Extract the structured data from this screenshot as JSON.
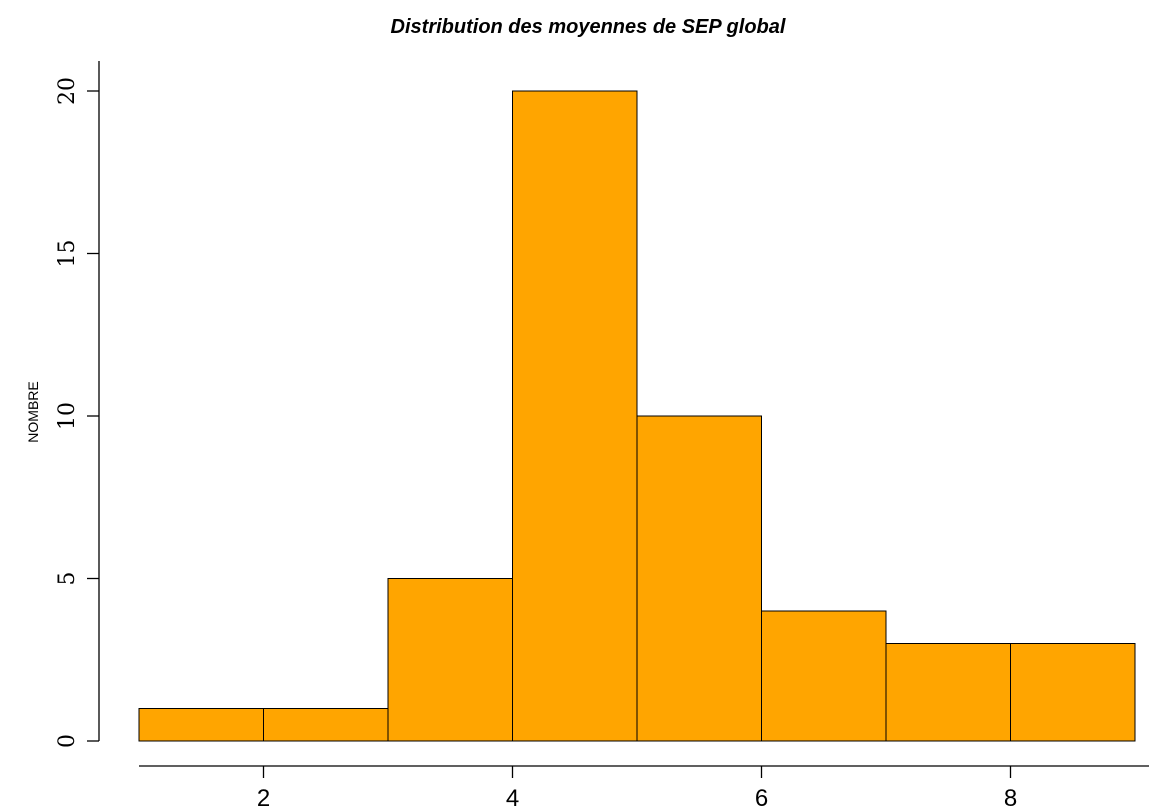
{
  "chart_data": {
    "type": "bar",
    "title": "Distribution des moyennes de SEP global",
    "xlabel": "",
    "ylabel": "NOMBRE",
    "bins": [
      {
        "from": 1,
        "to": 2,
        "count": 1
      },
      {
        "from": 2,
        "to": 3,
        "count": 1
      },
      {
        "from": 3,
        "to": 4,
        "count": 5
      },
      {
        "from": 4,
        "to": 5,
        "count": 20
      },
      {
        "from": 5,
        "to": 6,
        "count": 10
      },
      {
        "from": 6,
        "to": 7,
        "count": 4
      },
      {
        "from": 7,
        "to": 8,
        "count": 3
      },
      {
        "from": 8,
        "to": 9,
        "count": 3
      }
    ],
    "x_ticks": [
      "2",
      "4",
      "6",
      "8"
    ],
    "y_ticks": [
      "0",
      "5",
      "10",
      "15",
      "20"
    ],
    "xlim": [
      1,
      9
    ],
    "ylim": [
      0,
      20
    ],
    "bar_color": "#FFA500",
    "grid": false,
    "legend": "none"
  }
}
